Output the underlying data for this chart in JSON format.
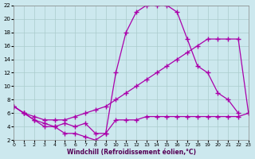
{
  "xlabel": "Windchill (Refroidissement éolien,°C)",
  "bg_color": "#cce8ee",
  "grid_color": "#aacccc",
  "line_color": "#aa00aa",
  "x_ticks": [
    0,
    1,
    2,
    3,
    4,
    5,
    6,
    7,
    8,
    9,
    10,
    11,
    12,
    13,
    14,
    15,
    16,
    17,
    18,
    19,
    20,
    21,
    22,
    23
  ],
  "y_ticks": [
    2,
    4,
    6,
    8,
    10,
    12,
    14,
    16,
    18,
    20,
    22
  ],
  "xlim": [
    0,
    23
  ],
  "ylim": [
    2,
    22
  ],
  "series": [
    {
      "x": [
        0,
        1,
        2,
        3,
        4,
        5,
        6,
        7,
        8,
        9,
        10,
        11,
        12,
        13,
        14,
        15,
        16,
        17,
        18,
        19,
        20,
        21,
        22
      ],
      "y": [
        7,
        6,
        5,
        4,
        4,
        3,
        3,
        2.5,
        2,
        3,
        12,
        18,
        21,
        22,
        22,
        22,
        21,
        17,
        13,
        12,
        9,
        8,
        6
      ]
    },
    {
      "x": [
        0,
        1,
        2,
        3,
        4,
        5,
        6,
        7,
        8,
        9,
        10,
        11,
        12,
        13,
        14,
        15,
        16,
        17,
        18,
        19,
        20,
        21,
        22,
        23
      ],
      "y": [
        7,
        6,
        5.5,
        5,
        5,
        5,
        5.5,
        6,
        6.5,
        7,
        8,
        9,
        10,
        11,
        12,
        13,
        14,
        15,
        16,
        17,
        17,
        17,
        17,
        6
      ]
    },
    {
      "x": [
        0,
        1,
        2,
        3,
        4,
        5,
        6,
        7,
        8,
        9,
        10,
        11,
        12,
        13,
        14,
        15,
        16,
        17,
        18,
        19,
        20,
        21,
        22,
        23
      ],
      "y": [
        7,
        6,
        5,
        4.5,
        4,
        4.5,
        4,
        4.5,
        3,
        3,
        5,
        5,
        5,
        5.5,
        5.5,
        5.5,
        5.5,
        5.5,
        5.5,
        5.5,
        5.5,
        5.5,
        5.5,
        6
      ]
    }
  ]
}
